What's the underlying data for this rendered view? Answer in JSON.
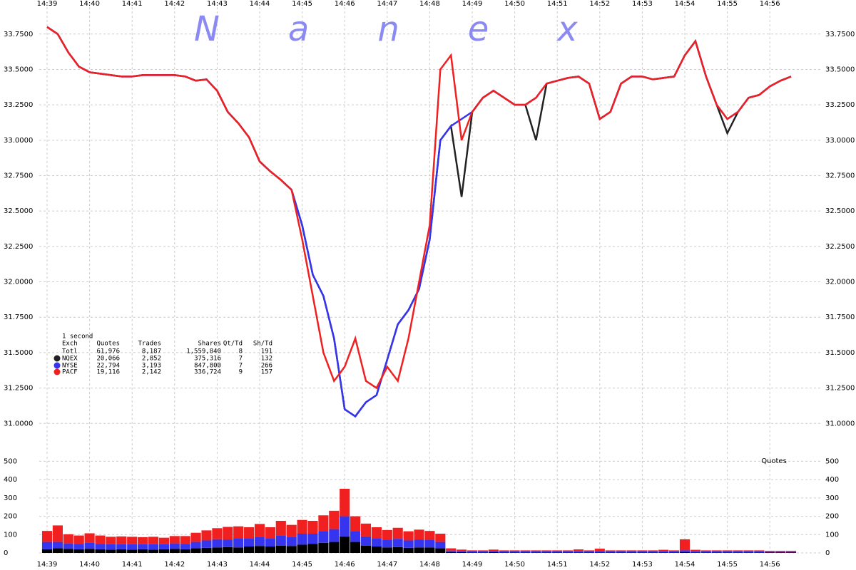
{
  "chart_data": [
    {
      "type": "line",
      "title": "Nanex",
      "categories": [
        "14:39",
        null,
        null,
        null,
        "14:40",
        null,
        null,
        null,
        "14:41",
        null,
        null,
        null,
        "14:42",
        null,
        null,
        null,
        "14:43",
        null,
        null,
        null,
        "14:44",
        null,
        null,
        null,
        "14:45",
        null,
        null,
        null,
        "14:46",
        null,
        null,
        null,
        "14:47",
        null,
        null,
        null,
        "14:48",
        null,
        null,
        null,
        "14:49",
        null,
        null,
        null,
        "14:50",
        null,
        null,
        null,
        "14:51",
        null,
        null,
        null,
        "14:52",
        null,
        null,
        null,
        "14:53",
        null,
        null,
        null,
        "14:54",
        null,
        null,
        null,
        "14:55",
        null,
        null,
        null,
        "14:56",
        null,
        null
      ],
      "ylim": [
        30.77,
        33.94
      ],
      "yticks": [
        {
          "value": 31,
          "label": "31.0000"
        },
        {
          "value": 31.25,
          "label": "31.2500"
        },
        {
          "value": 31.5,
          "label": "31.5000"
        },
        {
          "value": 31.75,
          "label": "31.7500"
        },
        {
          "value": 32,
          "label": "32.0000"
        },
        {
          "value": 32.25,
          "label": "32.2500"
        },
        {
          "value": 32.5,
          "label": "32.5000"
        },
        {
          "value": 32.75,
          "label": "32.7500"
        },
        {
          "value": 33,
          "label": "33.0000"
        },
        {
          "value": 33.25,
          "label": "33.2500"
        },
        {
          "value": 33.5,
          "label": "33.5000"
        },
        {
          "value": 33.75,
          "label": "33.7500"
        }
      ],
      "grid": true,
      "stats_period": "1 second",
      "stats_header": [
        "Exch",
        "Quotes",
        "Trades",
        "Shares",
        "Qt/Td",
        "Sh/Td"
      ],
      "stats_total": {
        "name": "Totl",
        "stats": [
          "61,976",
          "8,187",
          "1,559,840",
          "8",
          "191"
        ]
      },
      "series": [
        {
          "name": "NQEX",
          "color": "#222222",
          "stats": [
            "20,066",
            "2,852",
            "375,316",
            "7",
            "132"
          ],
          "values": [
            33.8,
            33.75,
            33.62,
            33.52,
            33.48,
            33.47,
            33.46,
            33.45,
            33.45,
            33.46,
            33.46,
            33.46,
            33.46,
            33.45,
            33.42,
            33.43,
            33.35,
            33.2,
            33.12,
            33.02,
            32.85,
            32.78,
            32.72,
            32.65,
            32.4,
            32.05,
            31.9,
            31.6,
            31.1,
            31.05,
            31.15,
            31.2,
            31.45,
            31.7,
            31.8,
            31.95,
            32.3,
            33.0,
            33.1,
            32.6,
            33.2,
            33.3,
            33.35,
            33.3,
            33.25,
            33.25,
            33.0,
            33.4,
            33.42,
            33.44,
            33.45,
            33.4,
            33.15,
            33.2,
            33.4,
            33.45,
            33.45,
            33.43,
            33.44,
            33.45,
            33.6,
            33.7,
            33.45,
            33.25,
            33.05,
            33.2,
            33.3,
            33.32,
            33.38,
            33.42,
            33.45
          ]
        },
        {
          "name": "NYSE",
          "color": "#3535f0",
          "stats": [
            "22,794",
            "3,193",
            "847,800",
            "7",
            "266"
          ],
          "values": [
            33.8,
            33.75,
            33.62,
            33.52,
            33.48,
            33.47,
            33.46,
            33.45,
            33.45,
            33.46,
            33.46,
            33.46,
            33.46,
            33.45,
            33.42,
            33.43,
            33.35,
            33.2,
            33.12,
            33.02,
            32.85,
            32.78,
            32.72,
            32.65,
            32.4,
            32.05,
            31.9,
            31.6,
            31.1,
            31.05,
            31.15,
            31.2,
            31.45,
            31.7,
            31.8,
            31.95,
            32.3,
            33.0,
            33.1,
            33.15,
            33.2,
            33.3,
            33.35,
            33.3,
            33.25,
            33.25,
            33.3,
            33.4,
            33.42,
            33.44,
            33.45,
            33.4,
            33.15,
            33.2,
            33.4,
            33.45,
            33.45,
            33.43,
            33.44,
            33.45,
            33.6,
            33.7,
            33.45,
            33.25,
            33.15,
            33.2,
            33.3,
            33.32,
            33.38,
            33.42,
            33.45
          ]
        },
        {
          "name": "PACF",
          "color": "#f02020",
          "stats": [
            "19,116",
            "2,142",
            "336,724",
            "9",
            "157"
          ],
          "values": [
            33.8,
            33.75,
            33.62,
            33.52,
            33.48,
            33.47,
            33.46,
            33.45,
            33.45,
            33.46,
            33.46,
            33.46,
            33.46,
            33.45,
            33.42,
            33.43,
            33.35,
            33.2,
            33.12,
            33.02,
            32.85,
            32.78,
            32.72,
            32.65,
            32.3,
            31.9,
            31.5,
            31.3,
            31.4,
            31.6,
            31.3,
            31.25,
            31.4,
            31.3,
            31.6,
            32.0,
            32.4,
            33.5,
            33.6,
            33.0,
            33.2,
            33.3,
            33.35,
            33.3,
            33.25,
            33.25,
            33.3,
            33.4,
            33.42,
            33.44,
            33.45,
            33.4,
            33.15,
            33.2,
            33.4,
            33.45,
            33.45,
            33.43,
            33.44,
            33.45,
            33.6,
            33.7,
            33.45,
            33.25,
            33.15,
            33.2,
            33.3,
            33.32,
            33.38,
            33.42,
            33.45
          ]
        }
      ]
    },
    {
      "type": "stacked_bar",
      "y_label": "Quotes",
      "categories": [
        "14:39",
        null,
        null,
        null,
        "14:40",
        null,
        null,
        null,
        "14:41",
        null,
        null,
        null,
        "14:42",
        null,
        null,
        null,
        "14:43",
        null,
        null,
        null,
        "14:44",
        null,
        null,
        null,
        "14:45",
        null,
        null,
        null,
        "14:46",
        null,
        null,
        null,
        "14:47",
        null,
        null,
        null,
        "14:48",
        null,
        null,
        null,
        "14:49",
        null,
        null,
        null,
        "14:50",
        null,
        null,
        null,
        "14:51",
        null,
        null,
        null,
        "14:52",
        null,
        null,
        null,
        "14:53",
        null,
        null,
        null,
        "14:54",
        null,
        null,
        null,
        "14:55",
        null,
        null,
        null,
        "14:56",
        null,
        null
      ],
      "ylim": [
        0,
        525
      ],
      "yticks": [
        0,
        100,
        200,
        300,
        400,
        500
      ],
      "grid": true,
      "series": [
        {
          "color": "#000000",
          "values": [
            20,
            25,
            22,
            20,
            22,
            20,
            18,
            20,
            18,
            20,
            18,
            20,
            22,
            20,
            25,
            28,
            30,
            32,
            30,
            35,
            38,
            35,
            40,
            38,
            45,
            50,
            55,
            60,
            90,
            60,
            40,
            35,
            30,
            32,
            28,
            30,
            30,
            25,
            5,
            4,
            3,
            3,
            4,
            3,
            3,
            3,
            3,
            3,
            3,
            3,
            3,
            3,
            3,
            3,
            3,
            3,
            3,
            3,
            3,
            3,
            4,
            3,
            3,
            3,
            3,
            3,
            3,
            3,
            2,
            2,
            2
          ]
        },
        {
          "color": "#3535f0",
          "values": [
            40,
            35,
            30,
            30,
            35,
            30,
            30,
            28,
            30,
            28,
            30,
            28,
            30,
            30,
            35,
            40,
            45,
            40,
            50,
            45,
            50,
            45,
            55,
            50,
            60,
            55,
            65,
            70,
            110,
            60,
            50,
            45,
            40,
            45,
            40,
            42,
            40,
            35,
            8,
            6,
            5,
            5,
            6,
            5,
            5,
            5,
            5,
            5,
            5,
            5,
            6,
            5,
            8,
            5,
            5,
            5,
            5,
            5,
            6,
            5,
            10,
            6,
            5,
            5,
            5,
            5,
            5,
            5,
            4,
            4,
            4
          ]
        },
        {
          "color": "#f02020",
          "values": [
            60,
            90,
            50,
            45,
            50,
            45,
            40,
            42,
            40,
            38,
            40,
            35,
            40,
            42,
            50,
            55,
            60,
            70,
            65,
            60,
            70,
            60,
            80,
            65,
            75,
            70,
            85,
            100,
            150,
            80,
            70,
            60,
            55,
            60,
            50,
            55,
            50,
            45,
            12,
            8,
            6,
            6,
            8,
            6,
            6,
            6,
            6,
            6,
            6,
            6,
            10,
            6,
            12,
            6,
            6,
            6,
            6,
            6,
            8,
            6,
            60,
            8,
            6,
            6,
            6,
            6,
            6,
            6,
            5,
            5,
            5
          ]
        }
      ]
    }
  ]
}
